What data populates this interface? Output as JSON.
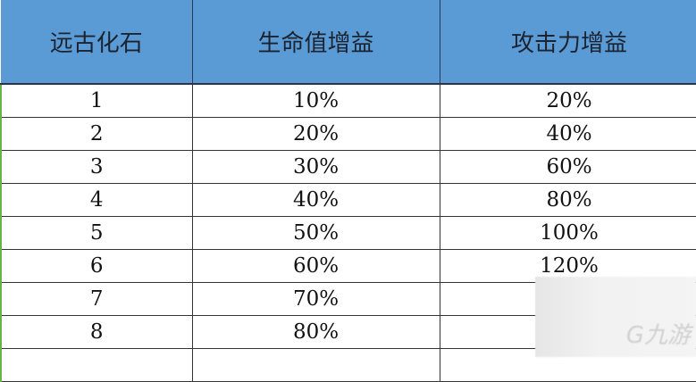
{
  "table": {
    "headers": [
      "远古化石",
      "生命值增益",
      "攻击力增益"
    ],
    "rows": [
      [
        "1",
        "10%",
        "20%"
      ],
      [
        "2",
        "20%",
        "40%"
      ],
      [
        "3",
        "30%",
        "60%"
      ],
      [
        "4",
        "40%",
        "80%"
      ],
      [
        "5",
        "50%",
        "100%"
      ],
      [
        "6",
        "60%",
        "120%"
      ],
      [
        "7",
        "70%",
        ""
      ],
      [
        "8",
        "80%",
        ""
      ],
      [
        "",
        "",
        ""
      ]
    ]
  },
  "watermark": {
    "logo_text": "九游"
  },
  "colors": {
    "header_bg": "#5b9bd5"
  }
}
